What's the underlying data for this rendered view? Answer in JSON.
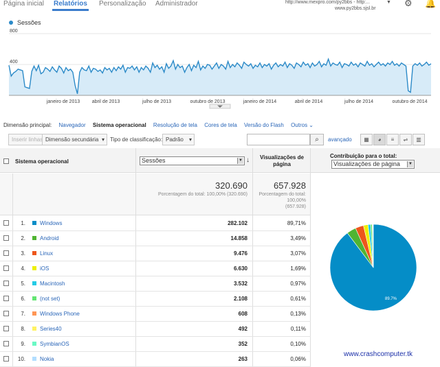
{
  "nav": {
    "tabs": [
      {
        "label": "Página inicial"
      },
      {
        "label": "Relatórios"
      },
      {
        "label": "Personalização"
      },
      {
        "label": "Administrador"
      }
    ],
    "account_url": "http://www.mexpro.com/py2bbs - http:...",
    "account_url2": "www.py2bbs.sjsl.br"
  },
  "chart_data": {
    "type": "line",
    "series": [
      {
        "name": "Sessões",
        "values": [
          390,
          250,
          290,
          310,
          340,
          330,
          320,
          110,
          100,
          90,
          310,
          380,
          320,
          390,
          280,
          300,
          360,
          340,
          310,
          370,
          330,
          300,
          380,
          350,
          290,
          360,
          320,
          340,
          300,
          130,
          20,
          300,
          360,
          330,
          320,
          380,
          300,
          350,
          340,
          310,
          330,
          290,
          360,
          330,
          350,
          300,
          360,
          320,
          370,
          340,
          390,
          300,
          360,
          350,
          380,
          330,
          370,
          300,
          360,
          330,
          380,
          350,
          300,
          420,
          360,
          390,
          340,
          370,
          300,
          410,
          350,
          380,
          450,
          340,
          400,
          360,
          380,
          300,
          360,
          400,
          320,
          390,
          360,
          440,
          330,
          380,
          350,
          400,
          390,
          340,
          380,
          420,
          350,
          400,
          380,
          340,
          440,
          360,
          400,
          370,
          420,
          390,
          350,
          430,
          400,
          380,
          410,
          350,
          390,
          370,
          420,
          360,
          400,
          380,
          410,
          340,
          390,
          420,
          370,
          400,
          380,
          430,
          360,
          410,
          390,
          350,
          420,
          400,
          370,
          430,
          390,
          410,
          360,
          420,
          380,
          400,
          440,
          370,
          410,
          390,
          470,
          380,
          420,
          400,
          390,
          430,
          360,
          410,
          400,
          380,
          430,
          390,
          410,
          370,
          420,
          400,
          380,
          440,
          390,
          410,
          370,
          400,
          430,
          390,
          410,
          380,
          420,
          400,
          440,
          390,
          410,
          380,
          420,
          400,
          380,
          60,
          40,
          380,
          410,
          390,
          420,
          380,
          400,
          430,
          390,
          410
        ]
      }
    ],
    "x_ticks": [
      "janeiro de 2013",
      "abril de 2013",
      "julho de 2013",
      "outubro de 2013",
      "janeiro de 2014",
      "abril de 2014",
      "julho de 2014",
      "outubro de 2014"
    ],
    "y_ticks": [
      "800",
      "400"
    ],
    "ylim": [
      0,
      800
    ],
    "color": "#2b8ac8"
  },
  "dimension": {
    "label": "Dimensão principal:",
    "items": [
      {
        "label": "Navegador"
      },
      {
        "label": "Sistema operacional"
      },
      {
        "label": "Resolução de tela"
      },
      {
        "label": "Cores de tela"
      },
      {
        "label": "Versão do Flash"
      },
      {
        "label": "Outros ⌄"
      }
    ]
  },
  "toolbar": {
    "plot_rows": "Inserir linhas",
    "secondary_dim": "Dimensão secundária",
    "sort_type_label": "Tipo de classificação:",
    "sort_type": "Padrão",
    "search_placeholder": "",
    "advanced": "avançado"
  },
  "table": {
    "col_os": "Sistema operacional",
    "metric_select": "Sessões",
    "col_pageviews": "Visualizações de página",
    "col_contribution": "Contribuição para o total:",
    "contribution_select": "Visualizações de página",
    "total_sessions": "320.690",
    "total_sessions_note": "Porcentagem do total: 100,00% (320.690)",
    "total_pageviews": "657.928",
    "total_pageviews_note1": "Porcentagem do total: 100,00%",
    "total_pageviews_note2": "(657.928)",
    "rows": [
      {
        "n": "1.",
        "name": "Windows",
        "sessions": "282.102",
        "pv": "89,71%",
        "color": "#058dc7",
        "value": 89.71
      },
      {
        "n": "2.",
        "name": "Android",
        "sessions": "14.858",
        "pv": "3,49%",
        "color": "#50b432",
        "value": 3.49
      },
      {
        "n": "3.",
        "name": "Linux",
        "sessions": "9.476",
        "pv": "3,07%",
        "color": "#ed561b",
        "value": 3.07
      },
      {
        "n": "4.",
        "name": "iOS",
        "sessions": "6.630",
        "pv": "1,69%",
        "color": "#edef00",
        "value": 1.69
      },
      {
        "n": "5.",
        "name": "Macintosh",
        "sessions": "3.532",
        "pv": "0,97%",
        "color": "#24cbe5",
        "value": 0.97
      },
      {
        "n": "6.",
        "name": "(not set)",
        "sessions": "2.108",
        "pv": "0,61%",
        "color": "#64e572",
        "value": 0.61
      },
      {
        "n": "7.",
        "name": "Windows Phone",
        "sessions": "608",
        "pv": "0,13%",
        "color": "#ff9655",
        "value": 0.13
      },
      {
        "n": "8.",
        "name": "Series40",
        "sessions": "492",
        "pv": "0,11%",
        "color": "#fff263",
        "value": 0.11
      },
      {
        "n": "9.",
        "name": "SymbianOS",
        "sessions": "352",
        "pv": "0,10%",
        "color": "#6af9c4",
        "value": 0.1
      },
      {
        "n": "10.",
        "name": "Nokia",
        "sessions": "263",
        "pv": "0,06%",
        "color": "#b2deff",
        "value": 0.06
      }
    ],
    "pie_label": "89.7%"
  },
  "watermark": "www.crashcomputer.tk"
}
